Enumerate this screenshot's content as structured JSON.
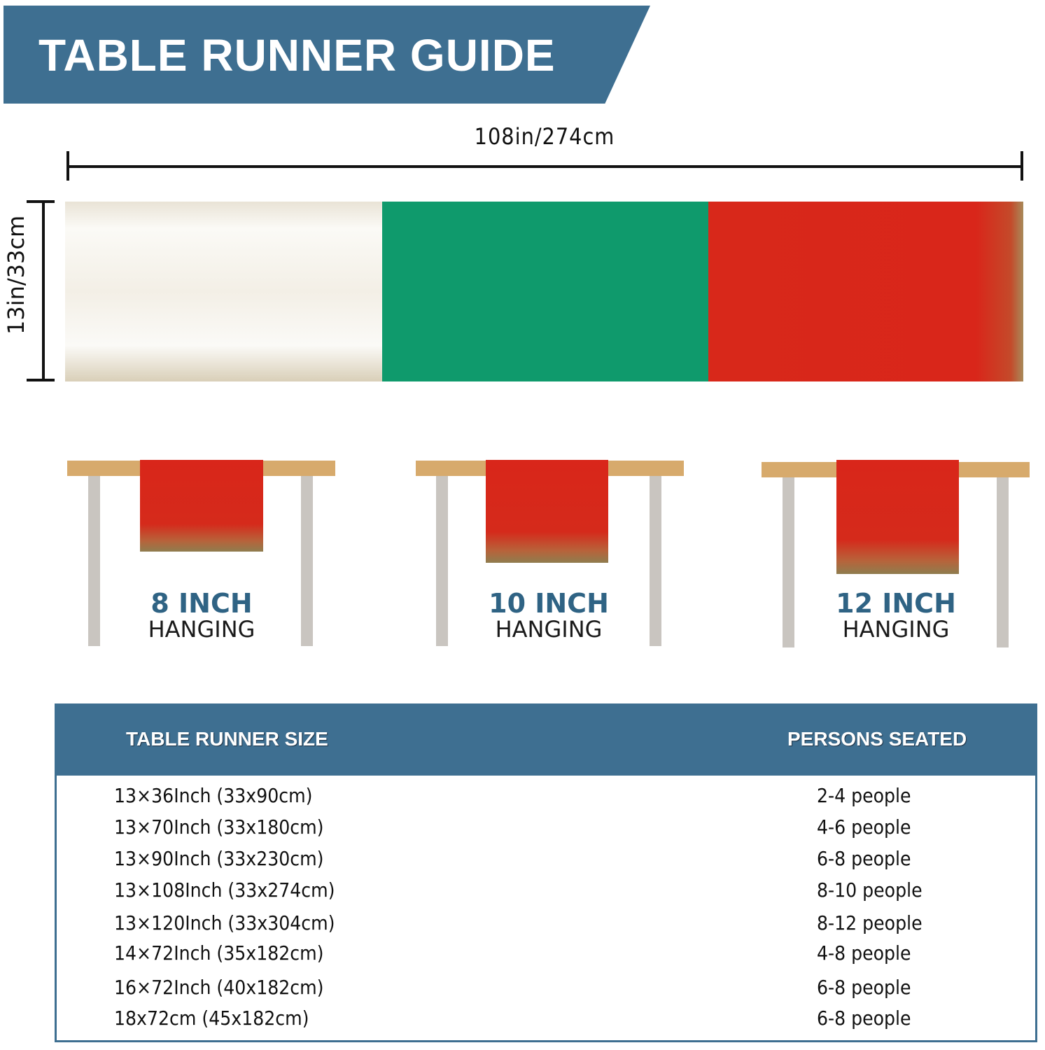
{
  "title": "TABLE RUNNER GUIDE",
  "dimensions": {
    "length": "108in/274cm",
    "width": "13in/33cm"
  },
  "runner_colors": {
    "white": "#f5f2ea",
    "green": "#0f9a6c",
    "red": "#d9261a"
  },
  "hanging": [
    {
      "size": "8 INCH",
      "label": "HANGING"
    },
    {
      "size": "10 INCH",
      "label": "HANGING"
    },
    {
      "size": "12 INCH",
      "label": "HANGING"
    }
  ],
  "size_table": {
    "headers": [
      "TABLE RUNNER SIZE",
      "PERSONS SEATED"
    ],
    "rows": [
      [
        "13×36Inch (33x90cm)",
        "2-4 people"
      ],
      [
        "13×70Inch  (33x180cm)",
        "4-6 people"
      ],
      [
        "13×90Inch  (33x230cm)",
        "6-8 people"
      ],
      [
        "13×108Inch  (33x274cm)",
        "8-10 people"
      ],
      [
        "13×120Inch  (33x304cm)",
        "8-12 people"
      ],
      [
        "14×72Inch (35x182cm)",
        "4-8 people"
      ],
      [
        "16×72Inch (40x182cm)",
        "6-8 people"
      ],
      [
        "18x72cm (45x182cm)",
        "6-8 people"
      ]
    ]
  },
  "accent_color": "#3e6f91"
}
